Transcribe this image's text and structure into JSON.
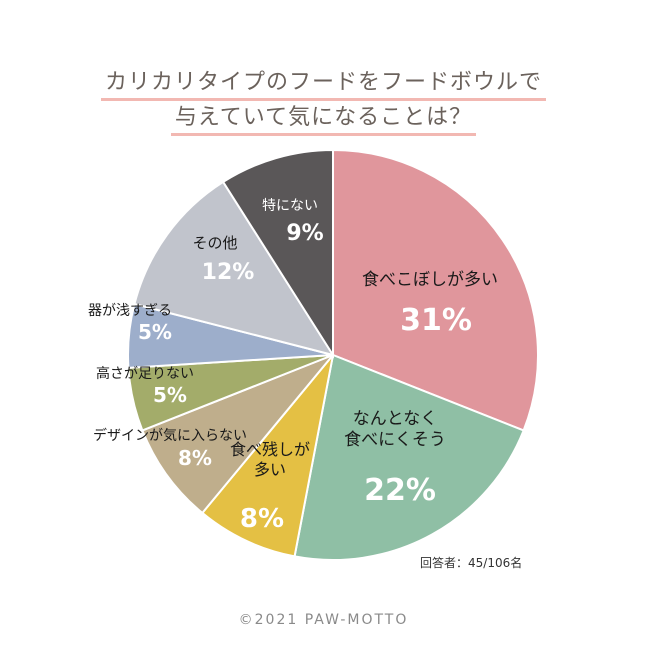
{
  "title_lines": [
    "カリカリタイプのフードをフードボウルで",
    "与えていて気になることは？"
  ],
  "footnote": "回答者：45/106名",
  "copyright": "©2021 PAW-MOTTO",
  "chart_data": {
    "type": "pie",
    "title": "カリカリタイプのフードをフードボウルで与えていて気になることは？",
    "slices": [
      {
        "label": "食べこぼしが多い",
        "value": 31,
        "display": "31%",
        "color": "#e0969c",
        "text_color": "#1a1a1a",
        "value_color": "#ffffff"
      },
      {
        "label": "なんとなく\n食べにくそう",
        "value": 22,
        "display": "22%",
        "color": "#8fbfa5",
        "text_color": "#1a1a1a",
        "value_color": "#ffffff"
      },
      {
        "label": "食べ残しが\n多い",
        "value": 8,
        "display": "8%",
        "color": "#e4c044",
        "text_color": "#1a1a1a",
        "value_color": "#ffffff"
      },
      {
        "label": "デザインが気に入らない",
        "value": 8,
        "display": "8%",
        "color": "#bfae8c",
        "text_color": "#1a1a1a",
        "value_color": "#ffffff"
      },
      {
        "label": "高さが足りない",
        "value": 5,
        "display": "5%",
        "color": "#a3ac6a",
        "text_color": "#1a1a1a",
        "value_color": "#ffffff"
      },
      {
        "label": "器が浅すぎる",
        "value": 5,
        "display": "5%",
        "color": "#9daecb",
        "text_color": "#1a1a1a",
        "value_color": "#ffffff"
      },
      {
        "label": "その他",
        "value": 12,
        "display": "12%",
        "color": "#c1c4cc",
        "text_color": "#1a1a1a",
        "value_color": "#ffffff"
      },
      {
        "label": "特にない",
        "value": 9,
        "display": "9%",
        "color": "#5a5758",
        "text_color": "#ffffff",
        "value_color": "#ffffff"
      }
    ]
  }
}
